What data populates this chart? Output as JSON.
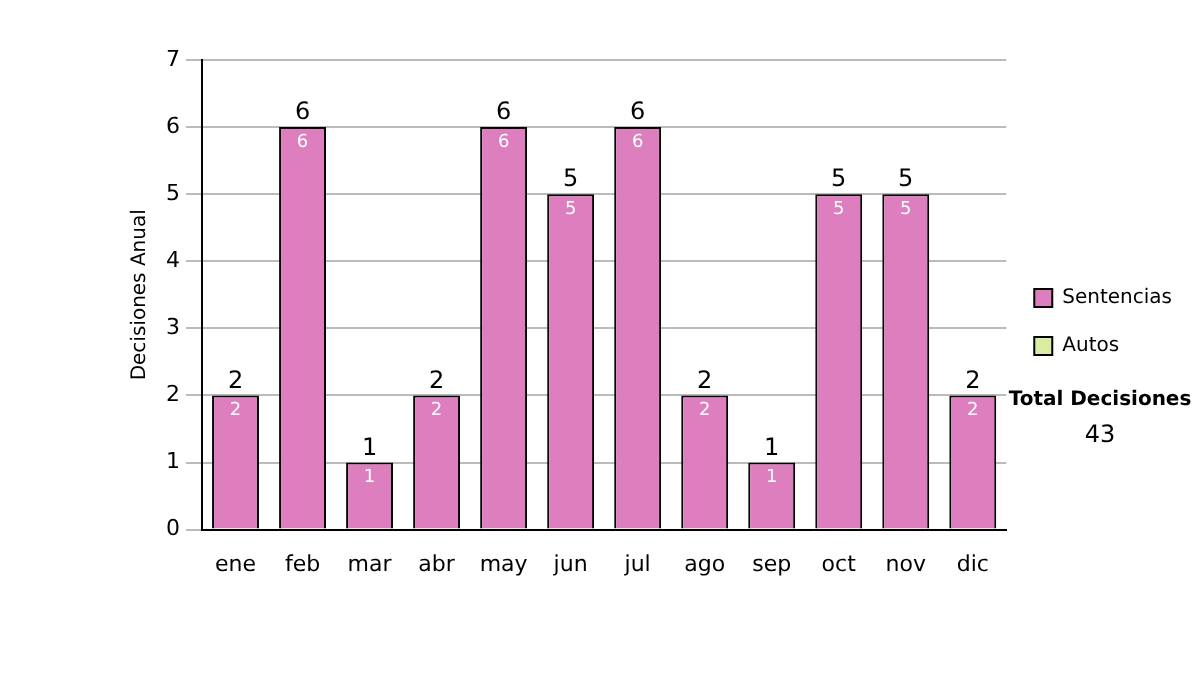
{
  "chart_data": {
    "type": "bar",
    "ylabel": "Decisiones Anual",
    "categories": [
      "ene",
      "feb",
      "mar",
      "abr",
      "may",
      "jun",
      "jul",
      "ago",
      "sep",
      "oct",
      "nov",
      "dic"
    ],
    "series": [
      {
        "name": "Sentencias",
        "color": "#dd7fbf",
        "values": [
          2,
          6,
          1,
          2,
          6,
          5,
          6,
          2,
          1,
          5,
          5,
          2
        ],
        "value_labels": [
          "2",
          "6",
          "1",
          "2",
          "6",
          "5",
          "6",
          "2",
          "1",
          "5",
          "5",
          "2"
        ]
      },
      {
        "name": "Autos",
        "color": "#d8eda0",
        "values": [
          null,
          null,
          null,
          null,
          null,
          null,
          null,
          null,
          null,
          null,
          null,
          null
        ]
      }
    ],
    "stacked": true,
    "totals": [
      "2",
      "6",
      "1",
      "2",
      "6",
      "5",
      "6",
      "2",
      "1",
      "5",
      "5",
      "2"
    ],
    "ylim": [
      0,
      7
    ],
    "yticks": [
      0,
      1,
      2,
      3,
      4,
      5,
      6,
      7
    ],
    "grid": "y",
    "legend": "right",
    "annotations": [
      "Total Decisiones",
      "43"
    ]
  }
}
